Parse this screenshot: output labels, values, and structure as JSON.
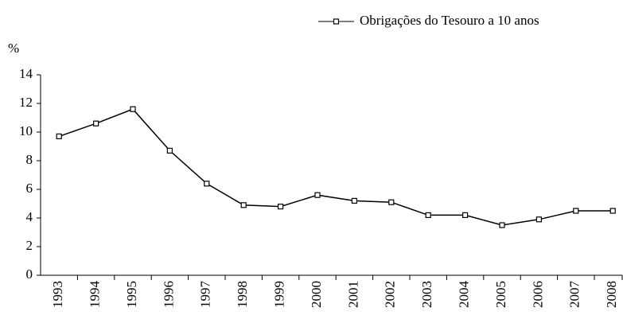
{
  "chart_data": {
    "type": "line",
    "y_label": "%",
    "categories": [
      "1993",
      "1994",
      "1995",
      "1996",
      "1997",
      "1998",
      "1999",
      "2000",
      "2001",
      "2002",
      "2003",
      "2004",
      "2005",
      "2006",
      "2007",
      "2008"
    ],
    "series": [
      {
        "name": "Obrigações do Tesouro a 10 anos",
        "color": "#000000",
        "values": [
          9.7,
          10.6,
          11.6,
          8.7,
          6.4,
          4.9,
          4.8,
          5.6,
          5.2,
          5.1,
          4.2,
          4.2,
          3.5,
          3.9,
          4.5,
          4.5
        ]
      }
    ],
    "ylim": [
      0,
      14
    ],
    "yticks": [
      0,
      2,
      4,
      6,
      8,
      10,
      12,
      14
    ],
    "grid": false,
    "legend": "top-right"
  }
}
